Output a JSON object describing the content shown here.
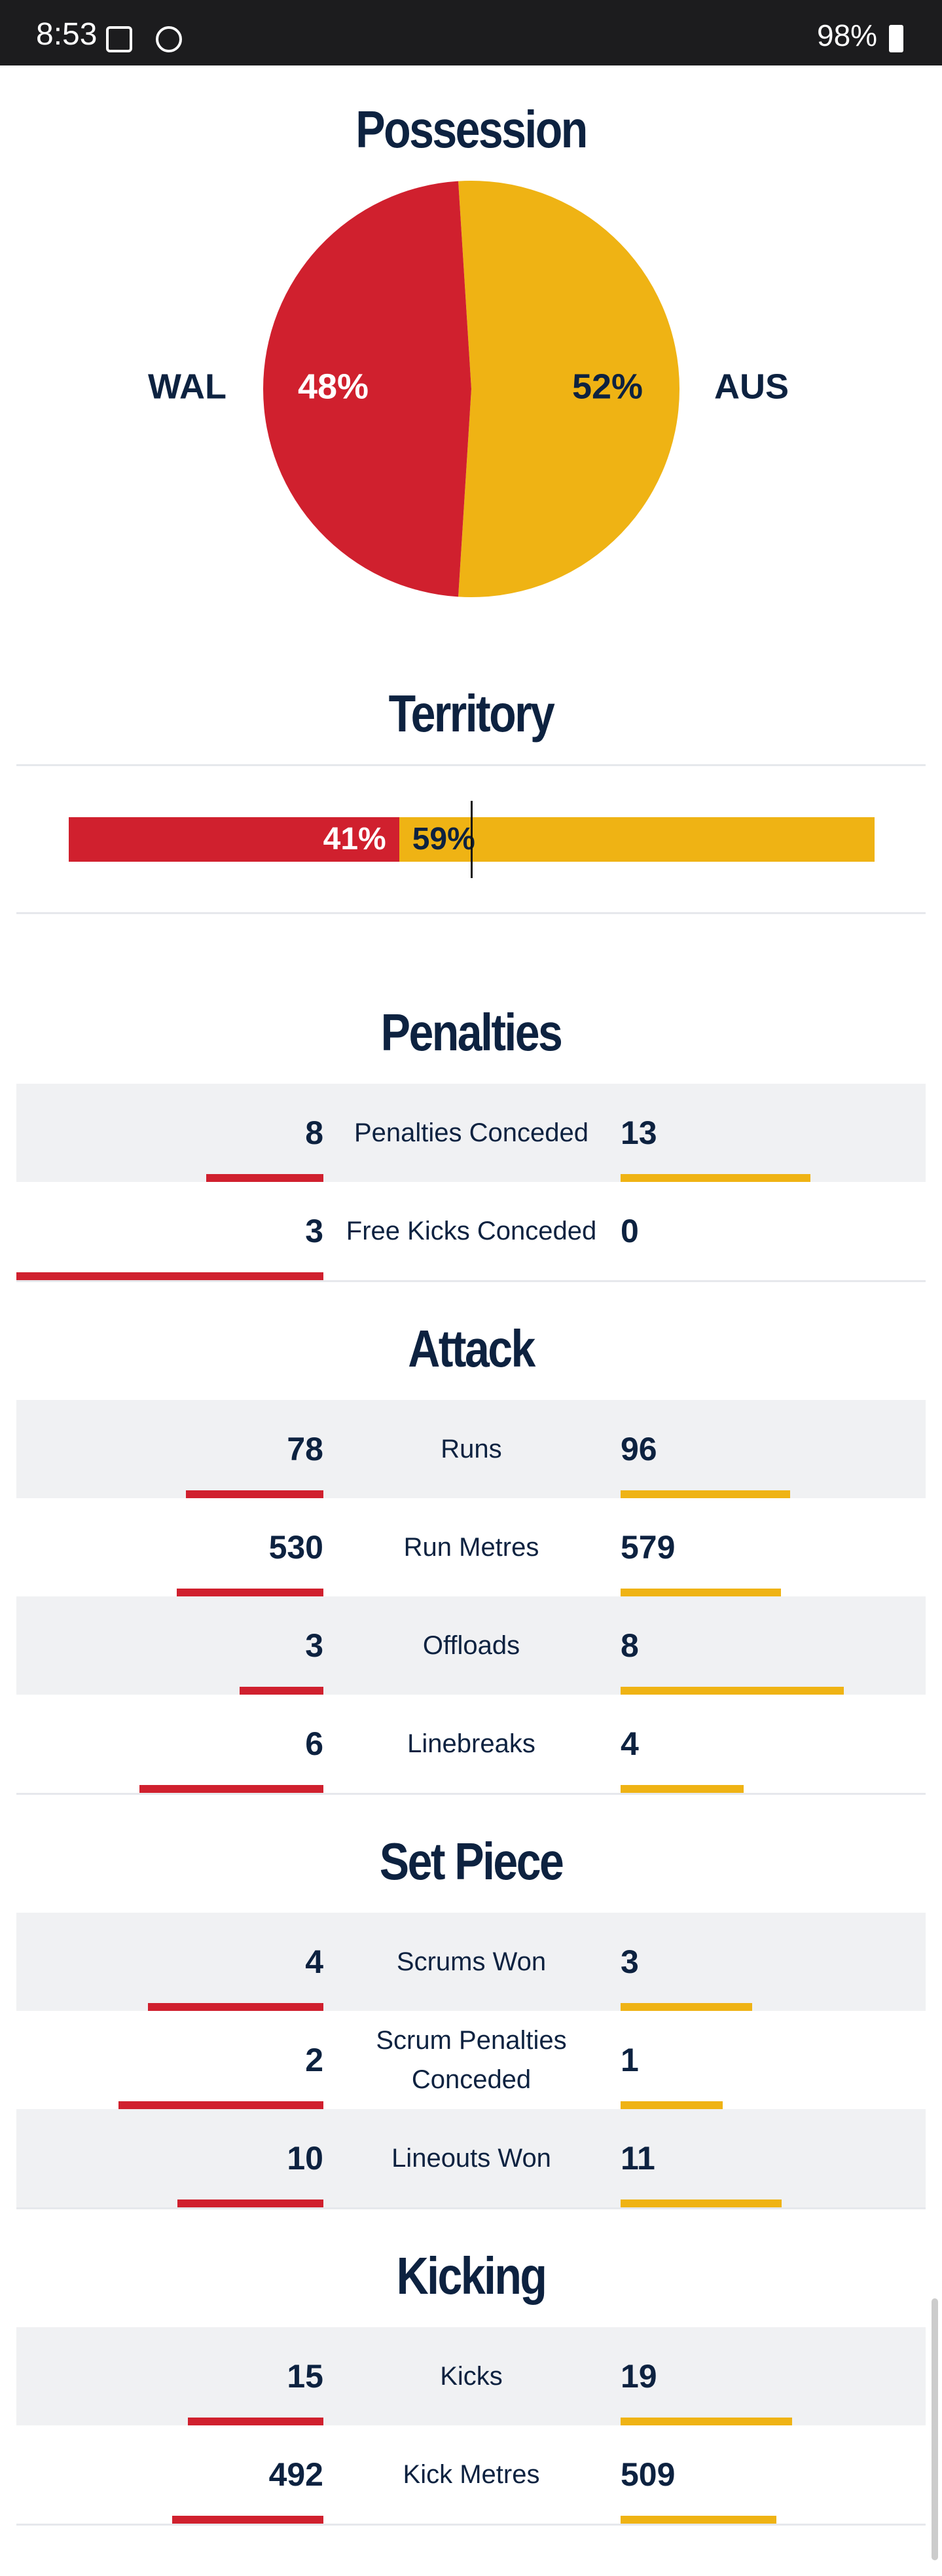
{
  "status_bar": {
    "time": "8:53",
    "battery": "98%"
  },
  "possession": {
    "title": "Possession",
    "teams": [
      "WAL",
      "AUS"
    ],
    "values": [
      48,
      52
    ],
    "value_labels": [
      "48%",
      "52%"
    ],
    "colors": [
      "#d0202e",
      "#efb314"
    ]
  },
  "territory": {
    "title": "Territory",
    "values": [
      41,
      59
    ],
    "value_labels": [
      "41%",
      "59%"
    ]
  },
  "sections": [
    {
      "title": "Penalties",
      "rows": [
        {
          "label": "Penalties Conceded",
          "home": 8,
          "away": 13
        },
        {
          "label": "Free Kicks Conceded",
          "home": 3,
          "away": 0
        }
      ]
    },
    {
      "title": "Attack",
      "rows": [
        {
          "label": "Runs",
          "home": 78,
          "away": 96
        },
        {
          "label": "Run Metres",
          "home": 530,
          "away": 579
        },
        {
          "label": "Offloads",
          "home": 3,
          "away": 8
        },
        {
          "label": "Linebreaks",
          "home": 6,
          "away": 4
        }
      ]
    },
    {
      "title": "Set Piece",
      "rows": [
        {
          "label": "Scrums Won",
          "home": 4,
          "away": 3
        },
        {
          "label": "Scrum Penalties Conceded",
          "home": 2,
          "away": 1
        },
        {
          "label": "Lineouts Won",
          "home": 10,
          "away": 11
        }
      ]
    },
    {
      "title": "Kicking",
      "rows": [
        {
          "label": "Kicks",
          "home": 15,
          "away": 19
        },
        {
          "label": "Kick Metres",
          "home": 492,
          "away": 509
        }
      ]
    }
  ]
}
